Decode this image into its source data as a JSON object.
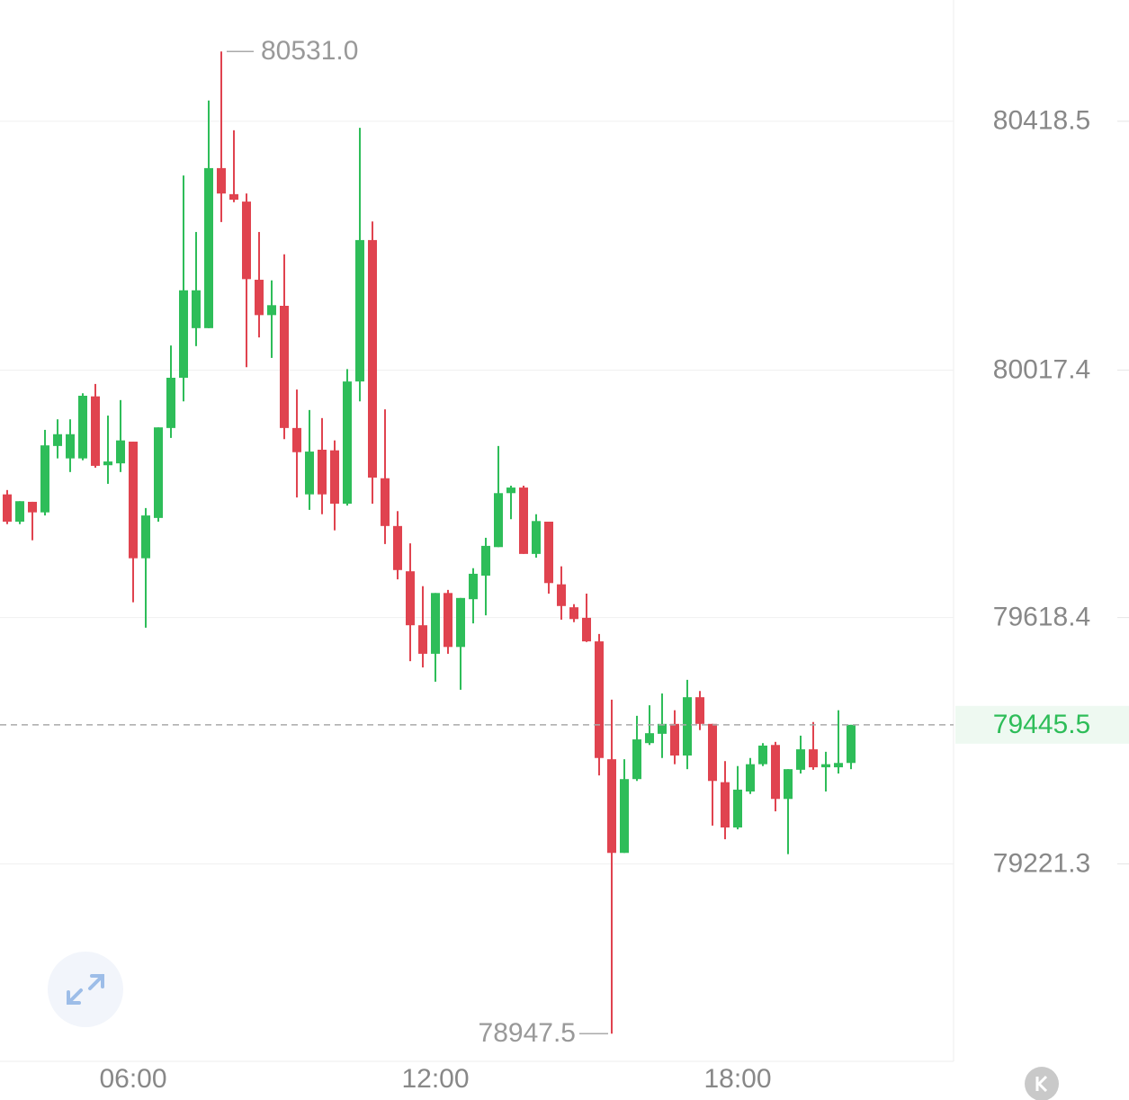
{
  "chart_data": {
    "type": "candlestick",
    "categories": [
      null,
      null,
      null,
      null,
      null,
      null,
      null,
      null,
      null,
      null,
      "06:00",
      null,
      null,
      null,
      null,
      null,
      null,
      null,
      null,
      null,
      null,
      null,
      null,
      null,
      null,
      null,
      null,
      null,
      null,
      null,
      null,
      null,
      null,
      null,
      "12:00",
      null,
      null,
      null,
      null,
      null,
      null,
      null,
      null,
      null,
      null,
      null,
      null,
      null,
      null,
      null,
      null,
      null,
      null,
      null,
      null,
      null,
      null,
      null,
      "18:00",
      null,
      null,
      null,
      null,
      null,
      null,
      null,
      null,
      null
    ],
    "open": [
      79817,
      79773,
      79805,
      79788,
      79895,
      79875,
      79875,
      79975,
      79864,
      79867,
      79902,
      79714,
      79779,
      79924,
      80005,
      80085,
      80085,
      80343,
      80301,
      80289,
      80163,
      80106,
      80121,
      79924,
      79817,
      79889,
      79888,
      79802,
      79999,
      80227,
      79843,
      79766,
      79693,
      79606,
      79560,
      79658,
      79571,
      79648,
      79686,
      79732,
      79819,
      79828,
      79721,
      79773,
      79672,
      79635,
      79618,
      79580,
      79390,
      79239,
      79358,
      79416,
      79431,
      79447,
      79396,
      79490,
      79447,
      79353,
      79280,
      79338,
      79382,
      79413,
      79326,
      79373,
      79406,
      79377,
      79377,
      79384
    ],
    "high": [
      79824,
      79806,
      79805,
      79921,
      79938,
      79938,
      79980,
      79995,
      79944,
      79969,
      79902,
      79795,
      79925,
      80057,
      80331,
      80240,
      80452,
      80531,
      80404,
      80302,
      80240,
      80162,
      80204,
      79986,
      79953,
      79940,
      79904,
      80019,
      80408,
      80257,
      79954,
      79790,
      79738,
      79669,
      79658,
      79663,
      79650,
      79698,
      79747,
      79895,
      79831,
      79831,
      79785,
      79773,
      79701,
      79640,
      79657,
      79592,
      79486,
      79390,
      79460,
      79477,
      79496,
      79469,
      79518,
      79500,
      79447,
      79387,
      79379,
      79392,
      79416,
      79418,
      79374,
      79428,
      79450,
      79402,
      79469,
      79445.5
    ],
    "low": [
      79769,
      79769,
      79743,
      79783,
      79875,
      79853,
      79872,
      79860,
      79834,
      79853,
      79643,
      79602,
      79773,
      79908,
      79967,
      80056,
      80085,
      80256,
      80288,
      80022,
      80070,
      80037,
      79906,
      79812,
      79792,
      79785,
      79759,
      79799,
      79967,
      79802,
      79737,
      79680,
      79548,
      79538,
      79515,
      79560,
      79502,
      79609,
      79622,
      79732,
      79777,
      79721,
      79715,
      79657,
      79615,
      79611,
      79579,
      79364,
      78947.5,
      79239,
      79355,
      79413,
      79392,
      79382,
      79374,
      79437,
      79283,
      79261,
      79277,
      79334,
      79379,
      79306,
      79237,
      79367,
      79373,
      79338,
      79367,
      79374
    ],
    "close": [
      79773,
      79806,
      79788,
      79896,
      79914,
      79914,
      79976,
      79863,
      79870,
      79904,
      79714,
      79783,
      79925,
      80005,
      80146,
      80146,
      80343,
      80302,
      80292,
      80164,
      80106,
      80122,
      79924,
      79885,
      79886,
      79817,
      79802,
      79999,
      80227,
      79844,
      79766,
      79695,
      79606,
      79560,
      79658,
      79571,
      79650,
      79689,
      79734,
      79819,
      79828,
      79721,
      79774,
      79674,
      79637,
      79616,
      79580,
      79392,
      79239,
      79358,
      79422,
      79432,
      79447,
      79396,
      79490,
      79447,
      79355,
      79280,
      79341,
      79382,
      79412,
      79326,
      79374,
      79406,
      79377,
      79382,
      79384,
      79445.5
    ],
    "up_color": "#2ebd59",
    "down_color": "#e0434f",
    "ylim": [
      78903,
      80614
    ],
    "yticks": [
      80418.5,
      80017.4,
      79618.4,
      79221.3
    ],
    "grid": true,
    "annotations": [
      {
        "value": 80531,
        "label": "80531.0"
      },
      {
        "value": 78947.5,
        "label": "78947.5"
      }
    ]
  }
}
